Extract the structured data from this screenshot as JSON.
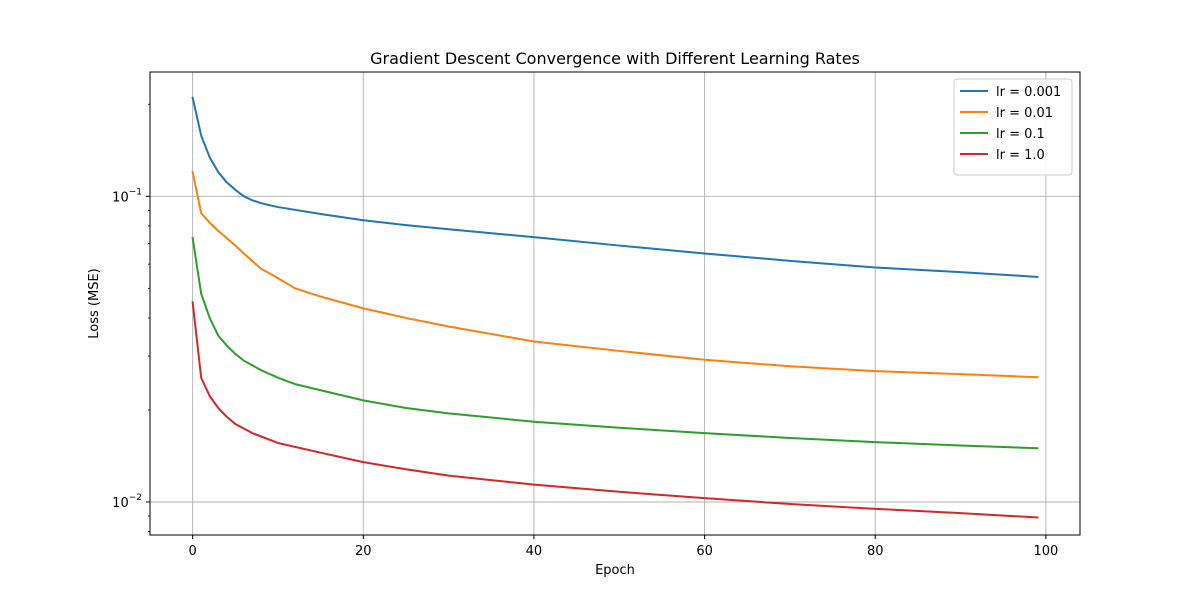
{
  "chart_data": {
    "type": "line",
    "title": "Gradient Descent Convergence with Different Learning Rates",
    "xlabel": "Epoch",
    "ylabel": "Loss (MSE)",
    "yscale": "log",
    "xlim": [
      -5,
      104
    ],
    "ylim": [
      0.0078,
      0.255
    ],
    "x_ticks": [
      0,
      20,
      40,
      60,
      80,
      100
    ],
    "y_ticks": [
      {
        "value": 0.1,
        "base": "10",
        "exp": "−1"
      },
      {
        "value": 0.01,
        "base": "10",
        "exp": "−2"
      }
    ],
    "grid": true,
    "legend_position": "top-right",
    "series": [
      {
        "name": "lr = 0.001",
        "color": "#1f77b4",
        "points": [
          [
            0,
            0.21
          ],
          [
            1,
            0.158
          ],
          [
            2,
            0.134
          ],
          [
            3,
            0.12
          ],
          [
            4,
            0.111
          ],
          [
            5,
            0.105
          ],
          [
            6,
            0.1
          ],
          [
            7,
            0.097
          ],
          [
            8,
            0.095
          ],
          [
            9,
            0.0935
          ],
          [
            10,
            0.0922
          ],
          [
            15,
            0.0875
          ],
          [
            20,
            0.0835
          ],
          [
            25,
            0.0805
          ],
          [
            30,
            0.078
          ],
          [
            40,
            0.0735
          ],
          [
            50,
            0.069
          ],
          [
            60,
            0.065
          ],
          [
            70,
            0.0615
          ],
          [
            80,
            0.0585
          ],
          [
            90,
            0.0565
          ],
          [
            99,
            0.0545
          ]
        ]
      },
      {
        "name": "lr = 0.01",
        "color": "#ff7f0e",
        "points": [
          [
            0,
            0.12
          ],
          [
            1,
            0.088
          ],
          [
            2,
            0.082
          ],
          [
            3,
            0.077
          ],
          [
            4,
            0.073
          ],
          [
            5,
            0.069
          ],
          [
            6,
            0.065
          ],
          [
            8,
            0.058
          ],
          [
            10,
            0.054
          ],
          [
            12,
            0.05
          ],
          [
            15,
            0.047
          ],
          [
            20,
            0.043
          ],
          [
            25,
            0.04
          ],
          [
            30,
            0.0375
          ],
          [
            40,
            0.0335
          ],
          [
            50,
            0.0312
          ],
          [
            60,
            0.0292
          ],
          [
            70,
            0.0278
          ],
          [
            80,
            0.0268
          ],
          [
            90,
            0.0262
          ],
          [
            99,
            0.0256
          ]
        ]
      },
      {
        "name": "lr = 0.1",
        "color": "#2ca02c",
        "points": [
          [
            0,
            0.073
          ],
          [
            1,
            0.048
          ],
          [
            2,
            0.04
          ],
          [
            3,
            0.035
          ],
          [
            4,
            0.0325
          ],
          [
            5,
            0.0305
          ],
          [
            6,
            0.029
          ],
          [
            8,
            0.027
          ],
          [
            10,
            0.0255
          ],
          [
            12,
            0.0243
          ],
          [
            15,
            0.0232
          ],
          [
            20,
            0.0215
          ],
          [
            25,
            0.0203
          ],
          [
            30,
            0.0195
          ],
          [
            40,
            0.0183
          ],
          [
            50,
            0.0175
          ],
          [
            60,
            0.0168
          ],
          [
            70,
            0.0162
          ],
          [
            80,
            0.0157
          ],
          [
            90,
            0.0153
          ],
          [
            99,
            0.015
          ]
        ]
      },
      {
        "name": "lr = 1.0",
        "color": "#d62728",
        "points": [
          [
            0,
            0.045
          ],
          [
            1,
            0.0255
          ],
          [
            2,
            0.0222
          ],
          [
            3,
            0.0203
          ],
          [
            4,
            0.019
          ],
          [
            5,
            0.018
          ],
          [
            7,
            0.0168
          ],
          [
            10,
            0.0156
          ],
          [
            15,
            0.0145
          ],
          [
            20,
            0.0135
          ],
          [
            25,
            0.0128
          ],
          [
            30,
            0.0122
          ],
          [
            40,
            0.0114
          ],
          [
            50,
            0.0108
          ],
          [
            60,
            0.0103
          ],
          [
            70,
            0.00985
          ],
          [
            80,
            0.0095
          ],
          [
            90,
            0.0092
          ],
          [
            99,
            0.0089
          ]
        ]
      }
    ]
  }
}
